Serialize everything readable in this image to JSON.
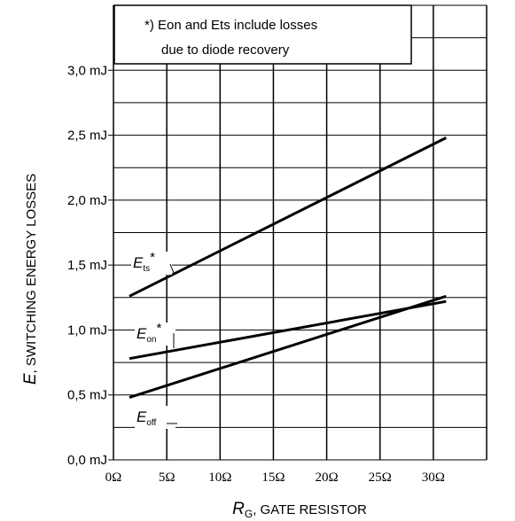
{
  "chart_data": {
    "type": "line",
    "xlabel": {
      "main": "R",
      "sub": "G",
      "rest": ", GATE RESISTOR"
    },
    "ylabel": {
      "main": "E",
      "rest": ", SWITCHING ENERGY LOSSES"
    },
    "x_ticks": [
      "0Ω",
      "5Ω",
      "10Ω",
      "15Ω",
      "20Ω",
      "25Ω",
      "30Ω"
    ],
    "y_ticks": [
      "0,0 mJ",
      "0,5 mJ",
      "1,0 mJ",
      "1,5 mJ",
      "2,0 mJ",
      "2,5 mJ",
      "3,0 mJ"
    ],
    "xlim": [
      0,
      35
    ],
    "ylim": [
      0,
      3.5
    ],
    "grid": true,
    "annotation": [
      "*) Eon and Ets include losses",
      "due to diode recovery"
    ],
    "series": [
      {
        "name": "E_ts*",
        "label": {
          "main": "E",
          "sub": "ts",
          "sup": "*"
        },
        "x": [
          1.5,
          31.2
        ],
        "y": [
          1.26,
          2.48
        ]
      },
      {
        "name": "E_on*",
        "label": {
          "main": "E",
          "sub": "on",
          "sup": "*"
        },
        "x": [
          1.5,
          31.2
        ],
        "y": [
          0.78,
          1.22
        ]
      },
      {
        "name": "E_off",
        "label": {
          "main": "E",
          "sub": "off",
          "sup": ""
        },
        "x": [
          1.5,
          31.2
        ],
        "y": [
          0.48,
          1.26
        ]
      }
    ]
  }
}
